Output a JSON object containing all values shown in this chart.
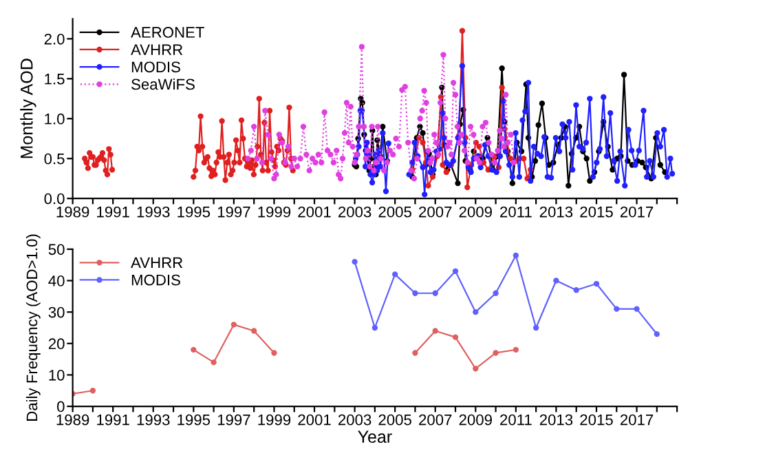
{
  "chart_data": [
    {
      "type": "line",
      "ylabel": "Monthly AOD",
      "legend": "top left",
      "marker": "circle",
      "grid": false,
      "xlim": [
        1989,
        2019
      ],
      "xticks": [
        1989,
        {
          "value": 1990,
          "label": null
        },
        1991,
        {
          "value": 1992,
          "label": null
        },
        1993,
        {
          "value": 1994,
          "label": null
        },
        1995,
        {
          "value": 1996,
          "label": null
        },
        1997,
        {
          "value": 1998,
          "label": null
        },
        1999,
        {
          "value": 2000,
          "label": null
        },
        2001,
        {
          "value": 2002,
          "label": null
        },
        2003,
        {
          "value": 2004,
          "label": null
        },
        2005,
        {
          "value": 2006,
          "label": null
        },
        2007,
        {
          "value": 2008,
          "label": null
        },
        2009,
        {
          "value": 2010,
          "label": null
        },
        2011,
        {
          "value": 2012,
          "label": null
        },
        2013,
        {
          "value": 2014,
          "label": null
        },
        2015,
        {
          "value": 2016,
          "label": null
        },
        2017,
        {
          "value": 2018,
          "label": null
        },
        {
          "value": 2019,
          "label": null
        }
      ],
      "ylim": [
        0,
        2.25
      ],
      "yticks": [
        {
          "value": 0,
          "label": "0.0"
        },
        0.5,
        {
          "value": 1,
          "label": "1.0"
        },
        1.5,
        {
          "value": 2,
          "label": "2.0"
        }
      ],
      "series": [
        {
          "name": "AERONET",
          "color": "#000000",
          "line_style": "solid",
          "x": [
            2003.0,
            2003.08,
            2003.17,
            2003.3,
            2003.38,
            2003.47,
            2003.55,
            2003.63,
            2003.72,
            2003.8,
            2003.88,
            2003.97,
            2004.05,
            2004.12,
            2004.27,
            2004.39,
            2004.61,
            2005.2,
            2005.86,
            2006.08,
            2006.24,
            2006.38,
            2006.53,
            2006.69,
            2006.87,
            2007.1,
            2007.33,
            2007.44,
            2007.6,
            2007.78,
            2008.12,
            2008.23,
            2008.39,
            2008.5,
            2008.73,
            2008.91,
            2009.13,
            2009.36,
            2009.59,
            2009.86,
            2010.08,
            2010.31,
            2010.44,
            2010.6,
            2010.83,
            2011.05,
            2011.28,
            2011.51,
            2011.62,
            2011.8,
            2011.96,
            2012.12,
            2012.3,
            2012.48,
            2012.64,
            2012.86,
            2013.09,
            2013.25,
            2013.43,
            2013.61,
            2013.77,
            2013.99,
            2014.15,
            2014.33,
            2014.51,
            2014.67,
            2014.9,
            2015.12,
            2015.35,
            2015.57,
            2015.8,
            2016.03,
            2016.21,
            2016.37,
            2016.55,
            2016.77,
            2017.04,
            2017.27,
            2017.45,
            2017.72,
            2017.95,
            2018.17,
            2018.4
          ],
          "values": [
            0.42,
            0.4,
            0.75,
            1.25,
            1.2,
            0.8,
            0.6,
            0.5,
            0.35,
            0.5,
            0.85,
            0.4,
            0.3,
            0.73,
            0.53,
            0.9,
            0.47,
            null,
            0.27,
            0.76,
            0.9,
            0.82,
            0.42,
            0.56,
            0.3,
            0.59,
            1.39,
            0.67,
            0.36,
            0.42,
            0.19,
            0.93,
            1.11,
            0.47,
            0.36,
            0.59,
            0.53,
            0.5,
            0.76,
            0.36,
            0.53,
            1.63,
            0.96,
            0.59,
            0.19,
            0.7,
            0.59,
            1.43,
            0.76,
            0.27,
            0.47,
            0.92,
            1.19,
            0.76,
            0.42,
            0.45,
            0.67,
            0.76,
            0.9,
            0.16,
            0.56,
            0.76,
            0.9,
            0.59,
            0.5,
            0.22,
            0.33,
            0.59,
            0.96,
            0.65,
            0.36,
            0.5,
            0.53,
            1.55,
            0.47,
            0.42,
            0.47,
            0.45,
            0.39,
            0.25,
            0.76,
            0.42,
            0.33
          ]
        },
        {
          "name": "AVHRR",
          "color": "#e02020",
          "line_style": "solid",
          "x": [
            1989.6,
            1989.68,
            1989.76,
            1989.84,
            1989.92,
            1990.0,
            1990.08,
            1990.16,
            1990.24,
            1990.32,
            1990.4,
            1990.48,
            1990.56,
            1990.64,
            1990.72,
            1990.8,
            1990.88,
            1990.96,
            1993.0,
            1995.0,
            1995.09,
            1995.18,
            1995.26,
            1995.35,
            1995.44,
            1995.53,
            1995.62,
            1995.7,
            1995.79,
            1995.88,
            1995.97,
            1996.06,
            1996.14,
            1996.23,
            1996.32,
            1996.41,
            1996.5,
            1996.58,
            1996.67,
            1996.76,
            1996.85,
            1996.94,
            1997.02,
            1997.11,
            1997.2,
            1997.29,
            1997.38,
            1997.46,
            1997.55,
            1997.64,
            1997.73,
            1997.82,
            1997.9,
            1997.99,
            1998.08,
            1998.17,
            1998.26,
            1998.34,
            1998.43,
            1998.52,
            1998.61,
            1998.7,
            1998.78,
            1998.87,
            1998.96,
            1999.05,
            1999.14,
            1999.22,
            1999.31,
            1999.4,
            1999.49,
            1999.58,
            1999.66,
            1999.75,
            1999.84,
            1999.93,
            2003.0,
            2005.86,
            2006.2,
            2006.38,
            2006.53,
            2006.65,
            2006.87,
            2007.1,
            2007.28,
            2007.37,
            2007.55,
            2007.78,
            2008.18,
            2008.34,
            2008.5,
            2008.59,
            2008.79,
            2009.02,
            2009.18,
            2009.4,
            2009.63,
            2009.92,
            2010.15,
            2010.31,
            2010.44,
            2010.72,
            2010.99,
            2011.17,
            2011.39,
            2011.57,
            2011.73
          ],
          "values": [
            0.5,
            0.45,
            0.38,
            0.57,
            0.52,
            0.52,
            0.42,
            0.42,
            0.48,
            0.5,
            0.52,
            0.57,
            0.48,
            0.35,
            0.3,
            0.62,
            0.55,
            0.36,
            null,
            0.27,
            0.35,
            0.65,
            0.6,
            1.03,
            0.65,
            0.45,
            0.5,
            0.52,
            0.38,
            0.28,
            0.35,
            0.3,
            0.45,
            0.58,
            0.52,
            0.97,
            0.52,
            0.23,
            0.45,
            0.55,
            0.3,
            0.35,
            0.45,
            0.73,
            0.6,
            0.45,
            0.98,
            0.75,
            0.5,
            0.4,
            0.45,
            0.38,
            0.48,
            0.3,
            0.42,
            0.65,
            1.25,
            0.55,
            0.35,
            0.95,
            0.45,
            0.35,
            1.1,
            0.58,
            0.48,
            0.4,
            0.65,
            0.6,
            0.75,
            0.72,
            0.45,
            0.42,
            0.6,
            1.14,
            0.5,
            0.35,
            null,
            0.36,
            0.76,
            0.7,
            0.45,
            0.16,
            0.27,
            0.53,
            1.27,
            0.42,
            0.33,
            0.42,
            0.79,
            2.1,
            0.76,
            0.14,
            0.42,
            0.7,
            0.65,
            0.45,
            0.36,
            0.53,
            0.39,
            1.39,
            0.87,
            0.5,
            0.47,
            0.5,
            0.5,
            0.25,
            0.36
          ]
        },
        {
          "name": "MODIS",
          "color": "#2020ff",
          "line_style": "solid",
          "x": [
            2003.05,
            2003.13,
            2003.2,
            2003.28,
            2003.36,
            2003.45,
            2003.53,
            2003.61,
            2003.7,
            2003.78,
            2003.87,
            2003.95,
            2004.03,
            2004.12,
            2004.2,
            2004.28,
            2004.39,
            2004.55,
            2004.68,
            2005.2,
            2005.7,
            2005.86,
            2005.97,
            2006.13,
            2006.38,
            2006.47,
            2006.6,
            2006.76,
            2006.92,
            2007.05,
            2007.21,
            2007.37,
            2007.44,
            2007.55,
            2007.73,
            2007.89,
            2008.12,
            2008.34,
            2008.46,
            2008.64,
            2008.77,
            2008.91,
            2009.09,
            2009.25,
            2009.47,
            2009.63,
            2009.81,
            2010.04,
            2010.22,
            2010.38,
            2010.49,
            2010.67,
            2010.83,
            2010.99,
            2011.17,
            2011.33,
            2011.46,
            2011.62,
            2011.73,
            2011.89,
            2012.07,
            2012.25,
            2012.41,
            2012.57,
            2012.75,
            2012.98,
            2013.16,
            2013.31,
            2013.47,
            2013.65,
            2013.81,
            2013.99,
            2014.15,
            2014.33,
            2014.49,
            2014.67,
            2014.83,
            2015.01,
            2015.17,
            2015.35,
            2015.51,
            2015.69,
            2015.85,
            2016.03,
            2016.18,
            2016.41,
            2016.59,
            2016.75,
            2016.93,
            2017.11,
            2017.34,
            2017.5,
            2017.65,
            2017.83,
            2018.02,
            2018.17,
            2018.35,
            2018.51,
            2018.67,
            2018.76
          ],
          "values": [
            0.5,
            0.55,
            0.65,
            1.1,
            1.1,
            0.9,
            0.4,
            0.7,
            0.55,
            0.3,
            0.2,
            0.3,
            0.55,
            0.35,
            0.6,
            0.4,
            0.82,
            0.09,
            0.69,
            null,
            0.3,
            0.45,
            0.7,
            0.53,
            0.39,
            0.05,
            0.59,
            0.33,
            0.36,
            0.59,
            0.62,
            1.07,
            0.76,
            0.45,
            0.42,
            0.47,
            0.76,
            1.66,
            0.7,
            0.39,
            0.33,
            0.5,
            0.53,
            0.39,
            0.67,
            0.53,
            0.36,
            0.33,
            0.53,
            1.22,
            0.59,
            0.42,
            0.27,
            0.82,
            0.27,
            0.98,
            1.09,
            1.45,
            0.22,
            0.65,
            0.56,
            0.53,
            0.77,
            0.27,
            0.26,
            0.76,
            0.59,
            0.93,
            0.76,
            0.96,
            0.36,
            1.17,
            0.65,
            0.62,
            0.7,
            1.25,
            0.27,
            0.45,
            0.62,
            1.27,
            0.53,
            1.07,
            0.47,
            0.22,
            0.59,
            0.16,
            0.86,
            0.6,
            0.42,
            0.6,
            1.1,
            0.27,
            0.47,
            0.27,
            0.82,
            0.65,
            0.86,
            0.27,
            0.5,
            0.31
          ]
        },
        {
          "name": "SeaWiFS",
          "color": "#e040e0",
          "line_style": "dotted",
          "x": [
            1997.7,
            1997.85,
            1998.0,
            1998.15,
            1998.4,
            1998.55,
            1998.7,
            1998.85,
            1999.0,
            1999.1,
            1999.25,
            1999.4,
            1999.55,
            1999.7,
            1999.85,
            2000.0,
            2000.15,
            2000.3,
            2000.45,
            2000.6,
            2000.75,
            2000.9,
            2001.05,
            2001.2,
            2001.35,
            2001.5,
            2001.65,
            2001.8,
            2001.95,
            2002.1,
            2002.2,
            2002.3,
            2002.4,
            2002.5,
            2002.6,
            2002.7,
            2002.8,
            2002.9,
            2003.0,
            2003.1,
            2003.2,
            2003.35,
            2003.45,
            2003.55,
            2003.65,
            2003.75,
            2003.85,
            2003.95,
            2004.05,
            2004.15,
            2004.3,
            2004.45,
            2004.6,
            2004.75,
            2004.9,
            2005.05,
            2005.2,
            2005.35,
            2005.5,
            2005.65,
            2005.8,
            2005.95,
            2006.1,
            2006.25,
            2006.35,
            2006.45,
            2006.55,
            2006.65,
            2006.75,
            2006.85,
            2006.95,
            2007.05,
            2007.15,
            2007.25,
            2007.4,
            2007.5,
            2007.6,
            2007.7,
            2007.8,
            2007.9,
            2008.0,
            2008.1,
            2008.2,
            2008.3,
            2008.45,
            2008.6,
            2008.75,
            2008.9,
            2009.05,
            2009.2,
            2009.35,
            2009.5,
            2009.65,
            2009.8,
            2009.95,
            2010.1,
            2010.2,
            2010.3,
            2010.4,
            2010.5,
            2010.6,
            2010.75,
            2010.9
          ],
          "values": [
            0.5,
            0.6,
            0.9,
            0.5,
            0.45,
            1.1,
            0.8,
            0.5,
            0.25,
            0.3,
            0.8,
            0.7,
            0.45,
            0.65,
            0.4,
            0.5,
            0.4,
            0.5,
            0.9,
            0.55,
            0.35,
            0.5,
            0.45,
            0.55,
            0.45,
            1.08,
            0.6,
            0.55,
            0.45,
            0.6,
            0.3,
            0.25,
            0.5,
            0.82,
            1.2,
            0.7,
            1.15,
            0.65,
            0.45,
            0.55,
            0.9,
            1.9,
            0.9,
            0.5,
            0.6,
            0.4,
            0.9,
            0.35,
            0.45,
            0.9,
            0.5,
            0.35,
            0.45,
            0.6,
            0.55,
            0.75,
            0.65,
            1.36,
            1.4,
            0.7,
            0.35,
            0.25,
            0.5,
            1.0,
            1.1,
            1.35,
            1.2,
            0.6,
            0.45,
            0.5,
            0.8,
            0.7,
            0.55,
            1.2,
            1.8,
            1.0,
            0.65,
            0.7,
            0.55,
            1.45,
            1.3,
            0.9,
            0.7,
            0.8,
            0.6,
            0.45,
            0.9,
            0.8,
            0.5,
            0.45,
            0.9,
            0.95,
            0.7,
            0.55,
            0.45,
            0.6,
            0.85,
            0.75,
            0.65,
            1.3,
            0.7,
            0.8,
            0.45
          ]
        }
      ]
    },
    {
      "type": "line",
      "xlabel": "Year",
      "ylabel": "Daily Frequency (AOD>1.0)",
      "legend": "top left",
      "marker": "circle",
      "grid": false,
      "xlim": [
        1989,
        2019
      ],
      "xticks": [
        1989,
        {
          "value": 1990,
          "label": null
        },
        1991,
        {
          "value": 1992,
          "label": null
        },
        1993,
        {
          "value": 1994,
          "label": null
        },
        1995,
        {
          "value": 1996,
          "label": null
        },
        1997,
        {
          "value": 1998,
          "label": null
        },
        1999,
        {
          "value": 2000,
          "label": null
        },
        2001,
        {
          "value": 2002,
          "label": null
        },
        2003,
        {
          "value": 2004,
          "label": null
        },
        2005,
        {
          "value": 2006,
          "label": null
        },
        2007,
        {
          "value": 2008,
          "label": null
        },
        2009,
        {
          "value": 2010,
          "label": null
        },
        2011,
        {
          "value": 2012,
          "label": null
        },
        2013,
        {
          "value": 2014,
          "label": null
        },
        2015,
        {
          "value": 2016,
          "label": null
        },
        2017,
        {
          "value": 2018,
          "label": null
        },
        {
          "value": 2019,
          "label": null
        }
      ],
      "ylim": [
        0,
        50
      ],
      "yticks": [
        0,
        10,
        20,
        30,
        40,
        50
      ],
      "series": [
        {
          "name": "AVHRR",
          "color": "#e06060",
          "line_style": "solid",
          "x": [
            1989,
            1990,
            1993,
            1995,
            1996,
            1997,
            1998,
            1999,
            2002,
            2006,
            2007,
            2008,
            2009,
            2010,
            2011
          ],
          "values": [
            4,
            5,
            null,
            18,
            14,
            26,
            24,
            17,
            null,
            17,
            24,
            22,
            12,
            17,
            18
          ]
        },
        {
          "name": "MODIS",
          "color": "#6060ff",
          "line_style": "solid",
          "x": [
            2003,
            2004,
            2005,
            2006,
            2007,
            2008,
            2009,
            2010,
            2011,
            2012,
            2013,
            2014,
            2015,
            2016,
            2017,
            2018
          ],
          "values": [
            46,
            25,
            42,
            36,
            36,
            43,
            30,
            36,
            48,
            25,
            40,
            37,
            39,
            31,
            31,
            23
          ]
        }
      ]
    }
  ]
}
